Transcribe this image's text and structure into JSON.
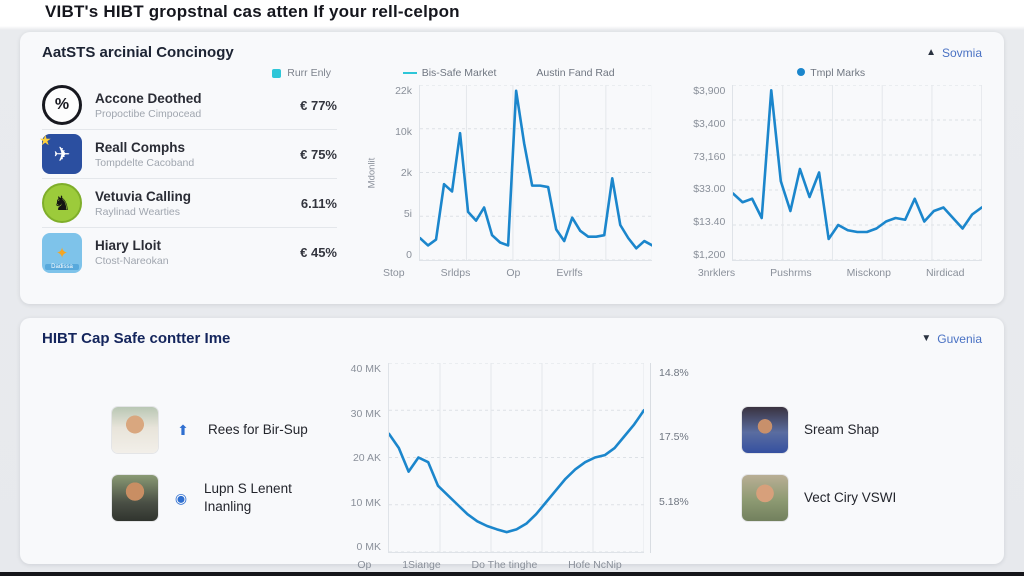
{
  "page": {
    "title": "VIBT's HIBT gropstnal cas atten If your rell-celpon"
  },
  "panel1": {
    "title": "AatSTS arcinial Concinogy",
    "sort": {
      "icon": "▲",
      "label": "Sovmia"
    },
    "list_legend": {
      "label": "Rurr Enly",
      "color": "#2ec6d8"
    },
    "items": [
      {
        "icon_name": "percent-circle-icon",
        "glyph": "%",
        "title": "Accone Deothed",
        "subtitle": "Propoctibe Cimpocead",
        "value": "€ 77%"
      },
      {
        "icon_name": "star-bird-icon",
        "glyph": "✈",
        "badge": "★",
        "title": "Reall Comphs",
        "subtitle": "Tompdelte Cacoband",
        "value": "€ 75%"
      },
      {
        "icon_name": "green-knight-icon",
        "glyph": "♞",
        "title": "Vetuvia Calling",
        "subtitle": "Raylinad Wearties",
        "value": "6.11%"
      },
      {
        "icon_name": "coin-tile-icon",
        "glyph": "✦",
        "tile_label": "Dadissa",
        "title": "Hiary Lloit",
        "subtitle": "Ctost-Nareokan",
        "value": "€ 45%"
      }
    ]
  },
  "panel2": {
    "title": "HIBT Cap Safe contter Ime",
    "sort": {
      "icon": "▼",
      "label": "Guvenia"
    },
    "profiles_left": [
      {
        "name": "Rees for Bir-Sup",
        "icon": "⬆"
      },
      {
        "name": "Lupn S Lenent Inanling",
        "icon": "◉"
      }
    ],
    "profiles_right": [
      {
        "name": "Sream Shap"
      },
      {
        "name": "Vect Ciry VSWI"
      }
    ]
  },
  "chart_data": [
    {
      "type": "line",
      "legend": [
        "Bis-Safe Market",
        "Austin Fand Rad"
      ],
      "ylabel": "Mdonlit",
      "yticks": [
        "22k",
        "10k",
        "2k",
        "5i",
        "0"
      ],
      "xticks": [
        "Stop",
        "Srldps",
        "Op",
        "Evrlfs"
      ],
      "ylim": [
        0,
        12
      ],
      "color": "#1b86cc",
      "values": [
        1.5,
        1.0,
        1.4,
        5.2,
        4.7,
        8.7,
        3.3,
        2.7,
        3.6,
        1.7,
        1.2,
        1.0,
        11.6,
        8.0,
        5.1,
        5.1,
        5.0,
        2.1,
        1.3,
        2.9,
        2.0,
        1.6,
        1.6,
        1.7,
        5.6,
        2.4,
        1.5,
        0.8,
        1.3,
        1.0
      ]
    },
    {
      "type": "line",
      "legend": [
        "Tmpl Marks"
      ],
      "yticks": [
        "$3,900",
        "$3,400",
        "73,160",
        "$33.00",
        "$13.40",
        "$1,200"
      ],
      "xticks": [
        "3nrklers",
        "Pushrms",
        "Misckonp",
        "Nirdicad"
      ],
      "ylim": [
        0,
        100
      ],
      "color": "#1b86cc",
      "values": [
        38,
        33,
        35,
        24,
        97,
        45,
        28,
        52,
        36,
        50,
        12,
        20,
        17,
        16,
        16,
        18,
        22,
        24,
        23,
        35,
        22,
        28,
        30,
        24,
        18,
        26,
        30
      ]
    },
    {
      "type": "line",
      "legend": [],
      "yticks": [
        "40 MK",
        "30 MK",
        "20 AK",
        "10 MK",
        "0 MK"
      ],
      "yticks_right": [
        "14.8%",
        "17.5%",
        "5.18%"
      ],
      "xticks": [
        "Op",
        "1Siange",
        "Do The tinghe",
        "Hofe NcNip"
      ],
      "ylim": [
        0,
        40
      ],
      "color": "#1b86cc",
      "values": [
        25,
        22,
        17,
        20,
        19,
        14,
        12,
        10,
        8,
        6.5,
        5.5,
        4.8,
        4.2,
        4.8,
        6,
        8,
        10.5,
        13,
        15.5,
        17.5,
        19,
        20,
        20.5,
        22,
        24.5,
        27,
        30
      ]
    }
  ]
}
